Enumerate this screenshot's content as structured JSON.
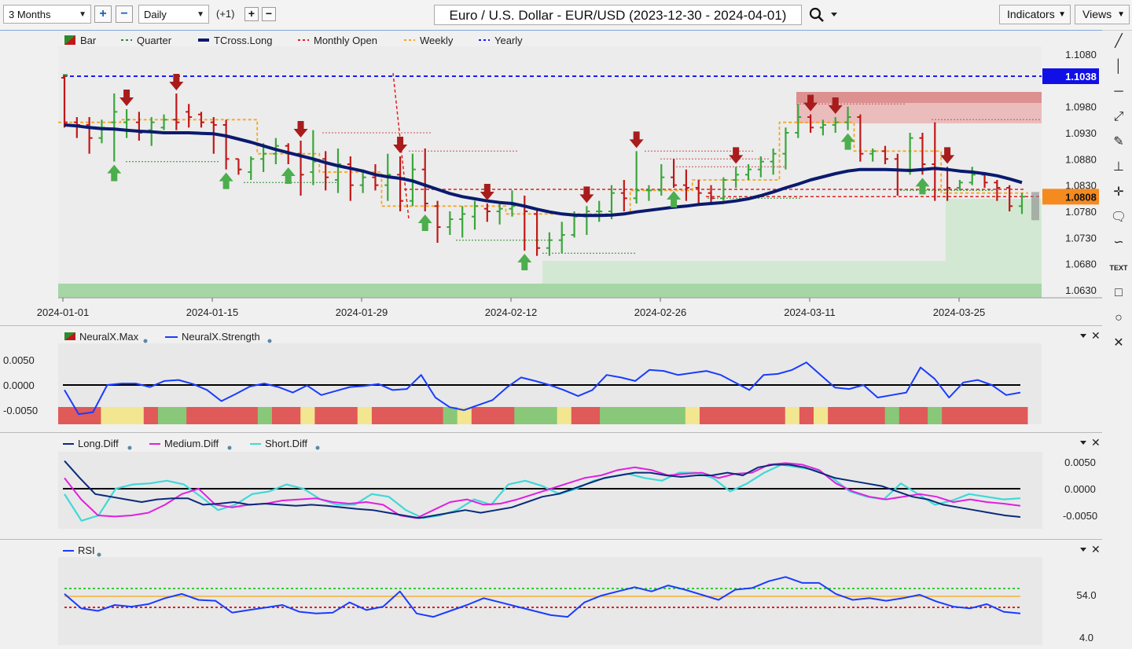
{
  "toolbar": {
    "period": "3 Months",
    "interval": "Daily",
    "offset": "(+1)",
    "title": "Euro / U.S. Dollar - EUR/USD (2023-12-30 - 2024-04-01)",
    "indicators": "Indicators",
    "views": "Views"
  },
  "main_pane": {
    "legend": [
      {
        "label": "Bar",
        "style": "bar",
        "color": "#2e8b2e"
      },
      {
        "label": "Quarter",
        "style": "dash",
        "color": "#2e8b2e"
      },
      {
        "label": "TCross.Long",
        "style": "thick",
        "color": "#0a1a6e"
      },
      {
        "label": "Monthly Open",
        "style": "dash",
        "color": "#e02020"
      },
      {
        "label": "Weekly",
        "style": "dash",
        "color": "#f5a623"
      },
      {
        "label": "Yearly",
        "style": "dash",
        "color": "#1a1aff"
      }
    ],
    "y_ticks": [
      "1.1080",
      "1.0980",
      "1.0930",
      "1.0880",
      "1.0830",
      "1.0780",
      "1.0730",
      "1.0680",
      "1.0630"
    ],
    "x_ticks": [
      "2024-01-01",
      "2024-01-15",
      "2024-01-29",
      "2024-02-12",
      "2024-02-26",
      "2024-03-11",
      "2024-03-25"
    ],
    "yearly_label": "1.1038",
    "price_label": "1.0808"
  },
  "neural_pane": {
    "legend": [
      {
        "label": "NeuralX.Max",
        "color": "#2e8b2e"
      },
      {
        "label": "NeuralX.Strength",
        "color": "#1a3cff"
      }
    ],
    "y_ticks": [
      "0.0050",
      "0.0000",
      "-0.0050"
    ]
  },
  "diff_pane": {
    "legend": [
      {
        "label": "Long.Diff",
        "color": "#0a2a7a"
      },
      {
        "label": "Medium.Diff",
        "color": "#e020e0"
      },
      {
        "label": "Short.Diff",
        "color": "#40d8d8"
      }
    ],
    "y_ticks": [
      "0.0050",
      "0.0000",
      "-0.0050"
    ]
  },
  "rsi_pane": {
    "legend": [
      {
        "label": "RSI",
        "color": "#1a3cff"
      }
    ],
    "y_ticks": [
      "54.0",
      "4.0"
    ]
  },
  "chart_data": {
    "type": "bar",
    "title": "Euro / U.S. Dollar - EUR/USD (2023-12-30 - 2024-04-01)",
    "interval": "Daily",
    "ylim": [
      1.0615,
      1.1095
    ],
    "levels": {
      "yearly_open": 1.1038,
      "monthly_open_mar": 1.0808,
      "current": 1.0808
    },
    "ohlc": [
      {
        "o": 1.1035,
        "h": 1.104,
        "l": 1.094,
        "c": 1.095
      },
      {
        "o": 1.095,
        "h": 1.096,
        "l": 1.092,
        "c": 1.0945
      },
      {
        "o": 1.0945,
        "h": 1.096,
        "l": 1.089,
        "c": 1.092
      },
      {
        "o": 1.092,
        "h": 1.0955,
        "l": 1.091,
        "c": 1.094
      },
      {
        "o": 1.095,
        "h": 1.1005,
        "l": 1.0875,
        "c": 1.097
      },
      {
        "o": 1.095,
        "h": 1.0975,
        "l": 1.092,
        "c": 1.0955
      },
      {
        "o": 1.095,
        "h": 1.097,
        "l": 1.0915,
        "c": 1.093
      },
      {
        "o": 1.0935,
        "h": 1.096,
        "l": 1.0905,
        "c": 1.095
      },
      {
        "o": 1.094,
        "h": 1.0965,
        "l": 1.0935,
        "c": 1.0955
      },
      {
        "o": 1.0955,
        "h": 1.1005,
        "l": 1.0935,
        "c": 1.095
      },
      {
        "o": 1.097,
        "h": 1.0985,
        "l": 1.094,
        "c": 1.096
      },
      {
        "o": 1.0965,
        "h": 1.097,
        "l": 1.094,
        "c": 1.095
      },
      {
        "o": 1.095,
        "h": 1.096,
        "l": 1.089,
        "c": 1.0945
      },
      {
        "o": 1.0945,
        "h": 1.0955,
        "l": 1.086,
        "c": 1.088
      },
      {
        "o": 1.088,
        "h": 1.088,
        "l": 1.085,
        "c": 1.086
      },
      {
        "o": 1.0855,
        "h": 1.0885,
        "l": 1.084,
        "c": 1.088
      },
      {
        "o": 1.088,
        "h": 1.091,
        "l": 1.0855,
        "c": 1.089
      },
      {
        "o": 1.089,
        "h": 1.092,
        "l": 1.087,
        "c": 1.0905
      },
      {
        "o": 1.0905,
        "h": 1.091,
        "l": 1.087,
        "c": 1.089
      },
      {
        "o": 1.089,
        "h": 1.0915,
        "l": 1.081,
        "c": 1.085
      },
      {
        "o": 1.0855,
        "h": 1.0935,
        "l": 1.083,
        "c": 1.0875
      },
      {
        "o": 1.088,
        "h": 1.0895,
        "l": 1.082,
        "c": 1.0845
      },
      {
        "o": 1.084,
        "h": 1.09,
        "l": 1.0815,
        "c": 1.087
      },
      {
        "o": 1.087,
        "h": 1.0885,
        "l": 1.08,
        "c": 1.083
      },
      {
        "o": 1.083,
        "h": 1.086,
        "l": 1.0815,
        "c": 1.0845
      },
      {
        "o": 1.0845,
        "h": 1.087,
        "l": 1.082,
        "c": 1.083
      },
      {
        "o": 1.083,
        "h": 1.089,
        "l": 1.08,
        "c": 1.085
      },
      {
        "o": 1.085,
        "h": 1.0885,
        "l": 1.078,
        "c": 1.08
      },
      {
        "o": 1.08,
        "h": 1.089,
        "l": 1.079,
        "c": 1.086
      },
      {
        "o": 1.086,
        "h": 1.09,
        "l": 1.078,
        "c": 1.0795
      },
      {
        "o": 1.079,
        "h": 1.08,
        "l": 1.072,
        "c": 1.075
      },
      {
        "o": 1.075,
        "h": 1.078,
        "l": 1.0735,
        "c": 1.0765
      },
      {
        "o": 1.0765,
        "h": 1.079,
        "l": 1.073,
        "c": 1.0775
      },
      {
        "o": 1.077,
        "h": 1.08,
        "l": 1.0745,
        "c": 1.079
      },
      {
        "o": 1.0785,
        "h": 1.0795,
        "l": 1.076,
        "c": 1.078
      },
      {
        "o": 1.078,
        "h": 1.0795,
        "l": 1.0755,
        "c": 1.0785
      },
      {
        "o": 1.0785,
        "h": 1.082,
        "l": 1.077,
        "c": 1.079
      },
      {
        "o": 1.079,
        "h": 1.081,
        "l": 1.0705,
        "c": 1.078
      },
      {
        "o": 1.0775,
        "h": 1.0785,
        "l": 1.0695,
        "c": 1.071
      },
      {
        "o": 1.071,
        "h": 1.074,
        "l": 1.0695,
        "c": 1.0725
      },
      {
        "o": 1.0725,
        "h": 1.076,
        "l": 1.07,
        "c": 1.0735
      },
      {
        "o": 1.0735,
        "h": 1.078,
        "l": 1.073,
        "c": 1.077
      },
      {
        "o": 1.077,
        "h": 1.079,
        "l": 1.0735,
        "c": 1.078
      },
      {
        "o": 1.078,
        "h": 1.08,
        "l": 1.076,
        "c": 1.078
      },
      {
        "o": 1.078,
        "h": 1.083,
        "l": 1.0765,
        "c": 1.0815
      },
      {
        "o": 1.0815,
        "h": 1.084,
        "l": 1.078,
        "c": 1.0805
      },
      {
        "o": 1.0805,
        "h": 1.0895,
        "l": 1.0795,
        "c": 1.082
      },
      {
        "o": 1.082,
        "h": 1.083,
        "l": 1.08,
        "c": 1.082
      },
      {
        "o": 1.082,
        "h": 1.087,
        "l": 1.081,
        "c": 1.0845
      },
      {
        "o": 1.0845,
        "h": 1.088,
        "l": 1.0825,
        "c": 1.083
      },
      {
        "o": 1.083,
        "h": 1.086,
        "l": 1.08,
        "c": 1.0825
      },
      {
        "o": 1.0825,
        "h": 1.084,
        "l": 1.0795,
        "c": 1.0815
      },
      {
        "o": 1.0815,
        "h": 1.083,
        "l": 1.0795,
        "c": 1.0805
      },
      {
        "o": 1.0805,
        "h": 1.0845,
        "l": 1.08,
        "c": 1.084
      },
      {
        "o": 1.084,
        "h": 1.0865,
        "l": 1.0825,
        "c": 1.085
      },
      {
        "o": 1.085,
        "h": 1.087,
        "l": 1.084,
        "c": 1.086
      },
      {
        "o": 1.086,
        "h": 1.0885,
        "l": 1.0845,
        "c": 1.0875
      },
      {
        "o": 1.0875,
        "h": 1.09,
        "l": 1.085,
        "c": 1.089
      },
      {
        "o": 1.089,
        "h": 1.094,
        "l": 1.086,
        "c": 1.093
      },
      {
        "o": 1.093,
        "h": 1.0985,
        "l": 1.092,
        "c": 1.096
      },
      {
        "o": 1.096,
        "h": 1.0965,
        "l": 1.093,
        "c": 1.094
      },
      {
        "o": 1.094,
        "h": 1.0955,
        "l": 1.0925,
        "c": 1.0945
      },
      {
        "o": 1.0945,
        "h": 1.096,
        "l": 1.093,
        "c": 1.095
      },
      {
        "o": 1.095,
        "h": 1.098,
        "l": 1.0935,
        "c": 1.096
      },
      {
        "o": 1.096,
        "h": 1.0965,
        "l": 1.0875,
        "c": 1.089
      },
      {
        "o": 1.089,
        "h": 1.09,
        "l": 1.0875,
        "c": 1.0895
      },
      {
        "o": 1.0895,
        "h": 1.0905,
        "l": 1.087,
        "c": 1.088
      },
      {
        "o": 1.088,
        "h": 1.089,
        "l": 1.081,
        "c": 1.086
      },
      {
        "o": 1.086,
        "h": 1.093,
        "l": 1.085,
        "c": 1.092
      },
      {
        "o": 1.092,
        "h": 1.093,
        "l": 1.085,
        "c": 1.087
      },
      {
        "o": 1.087,
        "h": 1.095,
        "l": 1.08,
        "c": 1.086
      },
      {
        "o": 1.086,
        "h": 1.0865,
        "l": 1.08,
        "c": 1.0825
      },
      {
        "o": 1.0825,
        "h": 1.084,
        "l": 1.082,
        "c": 1.0835
      },
      {
        "o": 1.0835,
        "h": 1.0865,
        "l": 1.083,
        "c": 1.085
      },
      {
        "o": 1.085,
        "h": 1.0855,
        "l": 1.0825,
        "c": 1.0835
      },
      {
        "o": 1.0835,
        "h": 1.084,
        "l": 1.08,
        "c": 1.0825
      },
      {
        "o": 1.0825,
        "h": 1.083,
        "l": 1.078,
        "c": 1.079
      },
      {
        "o": 1.079,
        "h": 1.0815,
        "l": 1.0775,
        "c": 1.0808
      }
    ],
    "tcross_long": [
      1.0945,
      1.0943,
      1.094,
      1.0938,
      1.0937,
      1.0935,
      1.0933,
      1.0932,
      1.093,
      1.093,
      1.093,
      1.0929,
      1.0928,
      1.0924,
      1.0918,
      1.0912,
      1.0905,
      1.0898,
      1.0892,
      1.0886,
      1.088,
      1.0873,
      1.0867,
      1.0862,
      1.0857,
      1.085,
      1.0846,
      1.0843,
      1.0838,
      1.083,
      1.0822,
      1.0814,
      1.0808,
      1.0804,
      1.08,
      1.0797,
      1.0795,
      1.079,
      1.0784,
      1.0779,
      1.0775,
      1.0773,
      1.0772,
      1.0772,
      1.0773,
      1.0775,
      1.0779,
      1.0782,
      1.0785,
      1.0788,
      1.079,
      1.0793,
      1.0795,
      1.0797,
      1.08,
      1.0804,
      1.081,
      1.0817,
      1.0825,
      1.0832,
      1.084,
      1.0846,
      1.0852,
      1.0857,
      1.086,
      1.086,
      1.086,
      1.0859,
      1.0858,
      1.086,
      1.0862,
      1.086,
      1.0857,
      1.0855,
      1.0852,
      1.0848,
      1.0842,
      1.0835
    ],
    "buy_signals": [
      4,
      13,
      18,
      29,
      37,
      49,
      63,
      69
    ],
    "sell_signals": [
      5,
      9,
      19,
      27,
      34,
      42,
      46,
      54,
      60,
      62,
      71
    ],
    "neuralx_strength": [
      -0.001,
      -0.0058,
      -0.0054,
      0.0,
      0.0003,
      0.0003,
      -0.0004,
      0.0008,
      0.001,
      0.0002,
      -0.001,
      -0.0032,
      -0.0018,
      -0.0003,
      0.0003,
      -0.0004,
      -0.0015,
      -0.0001,
      -0.002,
      -0.0012,
      -0.0004,
      -0.0002,
      0.0002,
      -0.001,
      -0.0008,
      0.002,
      -0.0025,
      -0.0044,
      -0.005,
      -0.004,
      -0.003,
      -0.0005,
      0.0015,
      0.0008,
      0.0,
      -0.001,
      -0.0022,
      -0.001,
      0.002,
      0.0015,
      0.0008,
      0.003,
      0.0028,
      0.002,
      0.0024,
      0.0028,
      0.002,
      0.0005,
      -0.001,
      0.002,
      0.0022,
      0.003,
      0.0045,
      0.002,
      -0.0005,
      -0.0008,
      0.0,
      -0.0025,
      -0.002,
      -0.0015,
      0.0035,
      0.0012,
      -0.0025,
      0.0005,
      0.001,
      0.0,
      -0.002,
      -0.0015
    ],
    "neuralx_max_states": [
      "red",
      "red",
      "red",
      "yellow",
      "yellow",
      "yellow",
      "red",
      "green",
      "green",
      "red",
      "red",
      "red",
      "red",
      "red",
      "green",
      "red",
      "red",
      "yellow",
      "red",
      "red",
      "red",
      "yellow",
      "red",
      "red",
      "red",
      "red",
      "red",
      "green",
      "yellow",
      "red",
      "red",
      "red",
      "green",
      "green",
      "green",
      "yellow",
      "red",
      "red",
      "green",
      "green",
      "green",
      "green",
      "green",
      "green",
      "yellow",
      "red",
      "red",
      "red",
      "red",
      "red",
      "red",
      "yellow",
      "red",
      "yellow",
      "red",
      "red",
      "red",
      "red",
      "green",
      "red",
      "red",
      "green",
      "red",
      "red",
      "red",
      "red",
      "red",
      "red"
    ],
    "long_diff": [
      0.0052,
      0.002,
      -0.001,
      -0.0015,
      -0.002,
      -0.0025,
      -0.002,
      -0.0018,
      -0.0018,
      -0.003,
      -0.0028,
      -0.0025,
      -0.003,
      -0.0028,
      -0.003,
      -0.0032,
      -0.003,
      -0.0032,
      -0.0035,
      -0.0038,
      -0.004,
      -0.0045,
      -0.005,
      -0.0055,
      -0.005,
      -0.0045,
      -0.004,
      -0.0045,
      -0.004,
      -0.0035,
      -0.0025,
      -0.0015,
      -0.001,
      0.0,
      0.001,
      0.002,
      0.0025,
      0.003,
      0.003,
      0.0025,
      0.0022,
      0.0025,
      0.0025,
      0.003,
      0.0025,
      0.004,
      0.0045,
      0.0045,
      0.004,
      0.003,
      0.002,
      0.0015,
      0.001,
      0.0005,
      -0.0005,
      -0.0015,
      -0.002,
      -0.003,
      -0.0035,
      -0.004,
      -0.0045,
      -0.005,
      -0.0053
    ],
    "medium_diff": [
      0.002,
      -0.002,
      -0.005,
      -0.0052,
      -0.005,
      -0.0045,
      -0.003,
      -0.001,
      0.0,
      -0.003,
      -0.0035,
      -0.003,
      -0.0028,
      -0.0022,
      -0.002,
      -0.0018,
      -0.0025,
      -0.0028,
      -0.0025,
      -0.003,
      -0.005,
      -0.0055,
      -0.004,
      -0.0025,
      -0.002,
      -0.003,
      -0.0028,
      -0.002,
      -0.001,
      0.0,
      0.001,
      0.002,
      0.0025,
      0.0035,
      0.004,
      0.0035,
      0.0025,
      0.0028,
      0.003,
      0.002,
      0.0028,
      0.003,
      0.0045,
      0.0048,
      0.0045,
      0.0035,
      0.001,
      -0.0005,
      -0.0015,
      -0.002,
      -0.0015,
      -0.001,
      -0.0015,
      -0.0025,
      -0.002,
      -0.0025,
      -0.0028,
      -0.0032
    ],
    "short_diff": [
      -0.001,
      -0.006,
      -0.005,
      0.0,
      0.0008,
      0.001,
      0.0015,
      0.0008,
      -0.0015,
      -0.004,
      -0.003,
      -0.001,
      -0.0005,
      0.0008,
      0.0,
      -0.002,
      -0.003,
      -0.003,
      -0.001,
      -0.0015,
      -0.004,
      -0.0055,
      -0.005,
      -0.004,
      -0.002,
      -0.003,
      0.0008,
      0.0015,
      0.0005,
      -0.001,
      0.0,
      0.0015,
      0.0022,
      0.0028,
      0.002,
      0.0015,
      0.003,
      0.003,
      0.002,
      -0.0005,
      0.001,
      0.003,
      0.0045,
      0.004,
      0.0035,
      0.002,
      -0.0005,
      -0.0015,
      -0.002,
      0.001,
      -0.001,
      -0.003,
      -0.0022,
      -0.001,
      -0.0015,
      -0.002,
      -0.0018
    ],
    "rsi": [
      55,
      38,
      35,
      42,
      40,
      43,
      50,
      55,
      48,
      47,
      33,
      36,
      39,
      42,
      34,
      32,
      33,
      45,
      36,
      40,
      58,
      32,
      28,
      35,
      42,
      50,
      45,
      40,
      35,
      30,
      28,
      45,
      53,
      58,
      63,
      58,
      65,
      60,
      54,
      48,
      60,
      62,
      70,
      75,
      68,
      68,
      55,
      48,
      50,
      47,
      50,
      54,
      46,
      40,
      38,
      43,
      34,
      32
    ]
  }
}
